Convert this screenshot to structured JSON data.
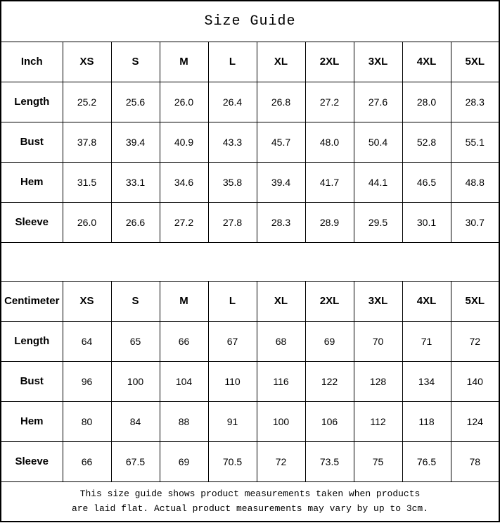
{
  "title": "Size Guide",
  "colors": {
    "background": "#ffffff",
    "border": "#000000",
    "text": "#000000"
  },
  "footer": {
    "line1": "This size guide shows product measurements taken when products",
    "line2": "are laid flat. Actual product measurements may vary by up to 3cm."
  },
  "chart_data": [
    {
      "type": "table",
      "title": "Size Guide",
      "unit": "Inch",
      "columns": [
        "XS",
        "S",
        "M",
        "L",
        "XL",
        "2XL",
        "3XL",
        "4XL",
        "5XL"
      ],
      "rows": [
        {
          "label": "Length",
          "values": [
            "25.2",
            "25.6",
            "26.0",
            "26.4",
            "26.8",
            "27.2",
            "27.6",
            "28.0",
            "28.3"
          ]
        },
        {
          "label": "Bust",
          "values": [
            "37.8",
            "39.4",
            "40.9",
            "43.3",
            "45.7",
            "48.0",
            "50.4",
            "52.8",
            "55.1"
          ]
        },
        {
          "label": "Hem",
          "values": [
            "31.5",
            "33.1",
            "34.6",
            "35.8",
            "39.4",
            "41.7",
            "44.1",
            "46.5",
            "48.8"
          ]
        },
        {
          "label": "Sleeve",
          "values": [
            "26.0",
            "26.6",
            "27.2",
            "27.8",
            "28.3",
            "28.9",
            "29.5",
            "30.1",
            "30.7"
          ]
        }
      ]
    },
    {
      "type": "table",
      "title": "Size Guide",
      "unit": "Centimeter",
      "columns": [
        "XS",
        "S",
        "M",
        "L",
        "XL",
        "2XL",
        "3XL",
        "4XL",
        "5XL"
      ],
      "rows": [
        {
          "label": "Length",
          "values": [
            "64",
            "65",
            "66",
            "67",
            "68",
            "69",
            "70",
            "71",
            "72"
          ]
        },
        {
          "label": "Bust",
          "values": [
            "96",
            "100",
            "104",
            "110",
            "116",
            "122",
            "128",
            "134",
            "140"
          ]
        },
        {
          "label": "Hem",
          "values": [
            "80",
            "84",
            "88",
            "91",
            "100",
            "106",
            "112",
            "118",
            "124"
          ]
        },
        {
          "label": "Sleeve",
          "values": [
            "66",
            "67.5",
            "69",
            "70.5",
            "72",
            "73.5",
            "75",
            "76.5",
            "78"
          ]
        }
      ]
    }
  ]
}
